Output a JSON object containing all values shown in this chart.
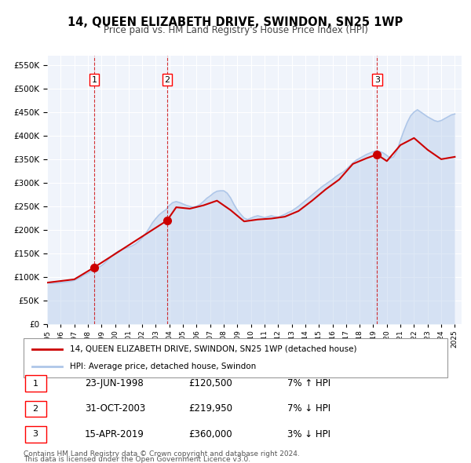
{
  "title": "14, QUEEN ELIZABETH DRIVE, SWINDON, SN25 1WP",
  "subtitle": "Price paid vs. HM Land Registry's House Price Index (HPI)",
  "legend_line1": "14, QUEEN ELIZABETH DRIVE, SWINDON, SN25 1WP (detached house)",
  "legend_line2": "HPI: Average price, detached house, Swindon",
  "footer1": "Contains HM Land Registry data © Crown copyright and database right 2024.",
  "footer2": "This data is licensed under the Open Government Licence v3.0.",
  "transactions": [
    {
      "num": 1,
      "date": "23-JUN-1998",
      "price": "£120,500",
      "hpi": "7% ↑ HPI",
      "year": 1998.47
    },
    {
      "num": 2,
      "date": "31-OCT-2003",
      "price": "£219,950",
      "hpi": "7% ↓ HPI",
      "year": 2003.83
    },
    {
      "num": 3,
      "date": "15-APR-2019",
      "price": "£360,000",
      "hpi": "3% ↓ HPI",
      "year": 2019.28
    }
  ],
  "transaction_values": [
    120500,
    219950,
    360000
  ],
  "hpi_color": "#aec6e8",
  "price_color": "#cc0000",
  "dashed_color": "#cc0000",
  "background_color": "#ffffff",
  "plot_bg_color": "#f0f4fb",
  "grid_color": "#ffffff",
  "ylim": [
    0,
    570000
  ],
  "yticks": [
    0,
    50000,
    100000,
    150000,
    200000,
    250000,
    300000,
    350000,
    400000,
    450000,
    500000,
    550000
  ],
  "xlim_start": 1995.0,
  "xlim_end": 2025.5,
  "hpi_data": {
    "years": [
      1995.0,
      1995.25,
      1995.5,
      1995.75,
      1996.0,
      1996.25,
      1996.5,
      1996.75,
      1997.0,
      1997.25,
      1997.5,
      1997.75,
      1998.0,
      1998.25,
      1998.5,
      1998.75,
      1999.0,
      1999.25,
      1999.5,
      1999.75,
      2000.0,
      2000.25,
      2000.5,
      2000.75,
      2001.0,
      2001.25,
      2001.5,
      2001.75,
      2002.0,
      2002.25,
      2002.5,
      2002.75,
      2003.0,
      2003.25,
      2003.5,
      2003.75,
      2004.0,
      2004.25,
      2004.5,
      2004.75,
      2005.0,
      2005.25,
      2005.5,
      2005.75,
      2006.0,
      2006.25,
      2006.5,
      2006.75,
      2007.0,
      2007.25,
      2007.5,
      2007.75,
      2008.0,
      2008.25,
      2008.5,
      2008.75,
      2009.0,
      2009.25,
      2009.5,
      2009.75,
      2010.0,
      2010.25,
      2010.5,
      2010.75,
      2011.0,
      2011.25,
      2011.5,
      2011.75,
      2012.0,
      2012.25,
      2012.5,
      2012.75,
      2013.0,
      2013.25,
      2013.5,
      2013.75,
      2014.0,
      2014.25,
      2014.5,
      2014.75,
      2015.0,
      2015.25,
      2015.5,
      2015.75,
      2016.0,
      2016.25,
      2016.5,
      2016.75,
      2017.0,
      2017.25,
      2017.5,
      2017.75,
      2018.0,
      2018.25,
      2018.5,
      2018.75,
      2019.0,
      2019.25,
      2019.5,
      2019.75,
      2020.0,
      2020.25,
      2020.5,
      2020.75,
      2021.0,
      2021.25,
      2021.5,
      2021.75,
      2022.0,
      2022.25,
      2022.5,
      2022.75,
      2023.0,
      2023.25,
      2023.5,
      2023.75,
      2024.0,
      2024.25,
      2024.5,
      2024.75,
      2025.0
    ],
    "values": [
      88000,
      87000,
      86500,
      87000,
      88000,
      89000,
      90000,
      91000,
      93000,
      96000,
      100000,
      105000,
      108000,
      112000,
      116000,
      120000,
      124000,
      130000,
      137000,
      144000,
      150000,
      155000,
      158000,
      161000,
      163000,
      166000,
      170000,
      176000,
      183000,
      192000,
      203000,
      215000,
      224000,
      232000,
      238000,
      243000,
      252000,
      258000,
      260000,
      258000,
      255000,
      252000,
      250000,
      248000,
      250000,
      254000,
      260000,
      267000,
      272000,
      278000,
      282000,
      283000,
      283000,
      278000,
      268000,
      254000,
      242000,
      233000,
      225000,
      222000,
      225000,
      228000,
      230000,
      228000,
      226000,
      228000,
      230000,
      228000,
      227000,
      230000,
      233000,
      237000,
      240000,
      245000,
      250000,
      256000,
      262000,
      268000,
      274000,
      280000,
      286000,
      292000,
      297000,
      302000,
      307000,
      313000,
      318000,
      322000,
      328000,
      335000,
      342000,
      348000,
      352000,
      356000,
      360000,
      363000,
      366000,
      368000,
      366000,
      363000,
      358000,
      352000,
      355000,
      368000,
      390000,
      410000,
      428000,
      442000,
      450000,
      455000,
      450000,
      445000,
      440000,
      436000,
      432000,
      430000,
      432000,
      436000,
      440000,
      444000,
      446000
    ]
  },
  "price_line_data": {
    "years": [
      1995.0,
      1997.0,
      1998.47,
      2003.83,
      2004.5,
      2005.5,
      2006.5,
      2007.5,
      2008.5,
      2009.5,
      2010.5,
      2011.5,
      2012.5,
      2013.5,
      2014.5,
      2015.5,
      2016.5,
      2017.5,
      2018.5,
      2019.28,
      2020.0,
      2021.0,
      2022.0,
      2023.0,
      2024.0,
      2025.0
    ],
    "values": [
      88000,
      95000,
      120500,
      219950,
      248000,
      245000,
      252000,
      262000,
      242000,
      218000,
      222000,
      224000,
      228000,
      240000,
      262000,
      286000,
      307000,
      340000,
      352000,
      360000,
      346000,
      380000,
      395000,
      370000,
      350000,
      355000
    ]
  }
}
